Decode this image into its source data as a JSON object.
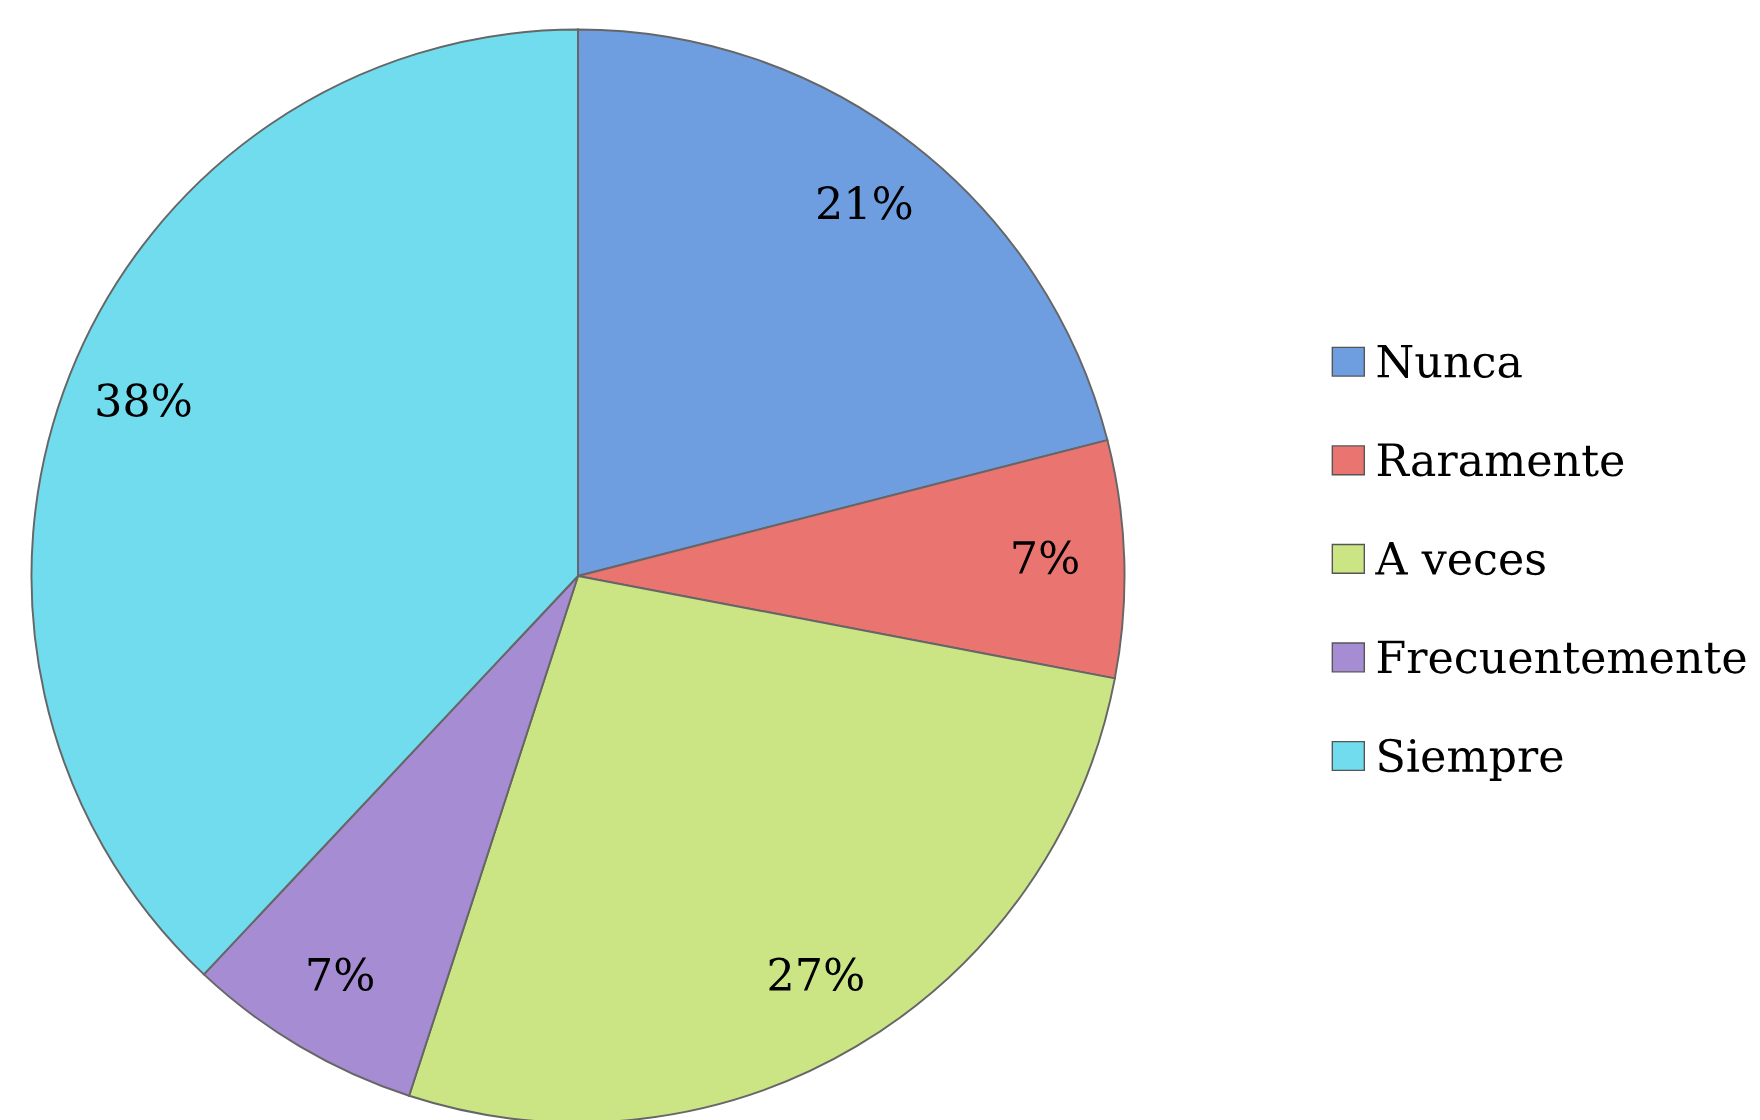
{
  "chart_data": {
    "type": "pie",
    "categories": [
      "Nunca",
      "Raramente",
      "A veces",
      "Frecuentemente",
      "Siempre"
    ],
    "values": [
      21,
      7,
      27,
      7,
      38
    ],
    "colors": [
      "#6e9ee0",
      "#ea7470",
      "#cbe585",
      "#a68cd2",
      "#72dcef"
    ],
    "value_labels": [
      "21%",
      "7%",
      "27%",
      "7%",
      "38%"
    ],
    "legend": "right"
  }
}
